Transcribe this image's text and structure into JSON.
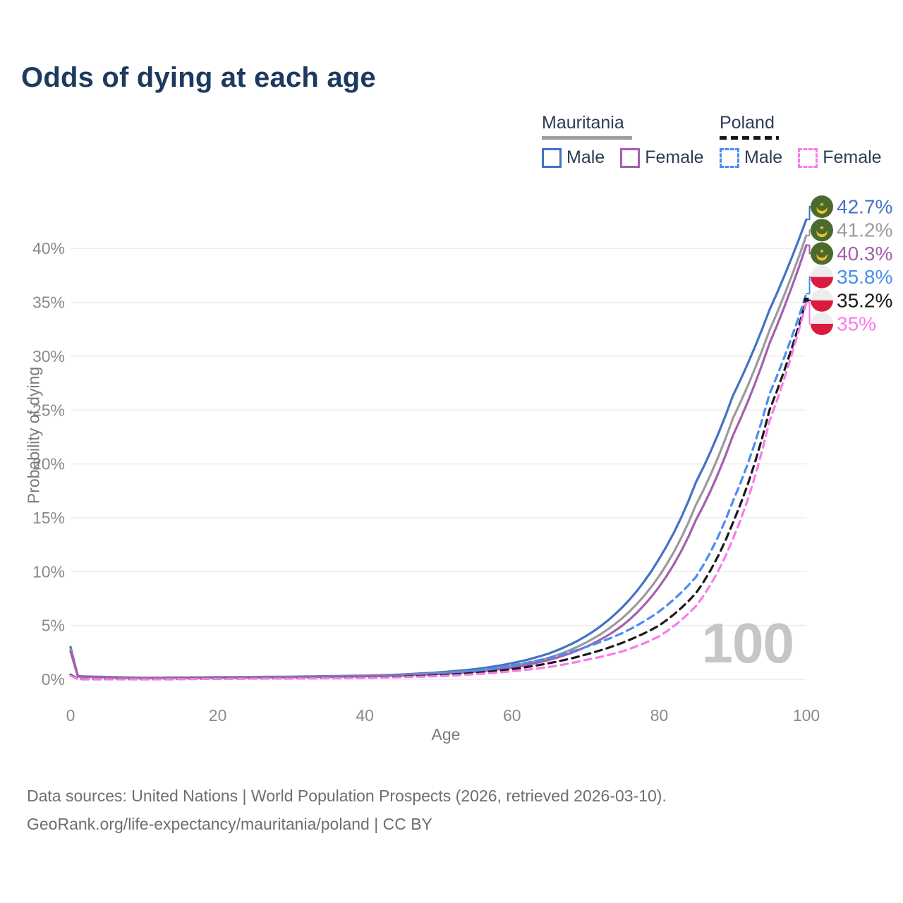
{
  "title": "Odds of dying at each age",
  "legend": {
    "groups": [
      {
        "label": "Mauritania",
        "line_style": "solid",
        "header_swatch_color": "#9e9e9e",
        "items": [
          {
            "label": "Male",
            "color": "#4372c4",
            "dashed": false
          },
          {
            "label": "Female",
            "color": "#a55fae",
            "dashed": false
          }
        ]
      },
      {
        "label": "Poland",
        "line_style": "dashed",
        "header_swatch_color": "#161616",
        "items": [
          {
            "label": "Male",
            "color": "#4a8df0",
            "dashed": true
          },
          {
            "label": "Female",
            "color": "#f87ce8",
            "dashed": true
          }
        ]
      }
    ]
  },
  "chart_data": {
    "type": "line",
    "title": "Odds of dying at each age",
    "xlabel": "Age",
    "ylabel": "Probability of dying",
    "xlim": [
      0,
      100
    ],
    "ylim_percent": [
      0,
      44
    ],
    "x_ticks": [
      0,
      20,
      40,
      60,
      80,
      100
    ],
    "y_ticks": [
      {
        "value": 0,
        "label": "0%"
      },
      {
        "value": 5,
        "label": "5%"
      },
      {
        "value": 10,
        "label": "10%"
      },
      {
        "value": 15,
        "label": "15%"
      },
      {
        "value": 20,
        "label": "20%"
      },
      {
        "value": 25,
        "label": "25%"
      },
      {
        "value": 30,
        "label": "30%"
      },
      {
        "value": 35,
        "label": "35%"
      },
      {
        "value": 40,
        "label": "40%"
      }
    ],
    "grid": "horizontal",
    "legend_position": "top-right",
    "x": [
      0,
      1,
      10,
      20,
      30,
      40,
      45,
      50,
      55,
      60,
      65,
      70,
      75,
      80,
      85,
      90,
      95,
      100
    ],
    "series": [
      {
        "id": "mrt-male",
        "name": "Mauritania — Male",
        "country": "mauritania",
        "sex": "male",
        "color": "#4372c4",
        "dashed": false,
        "end_label": "42.7%",
        "values_percent": [
          3.0,
          0.3,
          0.15,
          0.2,
          0.25,
          0.35,
          0.45,
          0.65,
          0.95,
          1.5,
          2.4,
          4.0,
          6.7,
          11.2,
          18.3,
          26.3,
          34.3,
          42.7
        ]
      },
      {
        "id": "mrt-both",
        "name": "Mauritania — Both sexes",
        "country": "mauritania",
        "sex": "both",
        "color": "#9b9b9b",
        "dashed": false,
        "end_label": "41.2%",
        "values_percent": [
          2.8,
          0.28,
          0.13,
          0.18,
          0.22,
          0.3,
          0.4,
          0.55,
          0.8,
          1.25,
          2.0,
          3.4,
          5.7,
          9.6,
          16.2,
          24.2,
          32.4,
          41.2
        ]
      },
      {
        "id": "mrt-female",
        "name": "Mauritania — Female",
        "country": "mauritania",
        "sex": "female",
        "color": "#a55fae",
        "dashed": false,
        "end_label": "40.3%",
        "values_percent": [
          2.6,
          0.26,
          0.12,
          0.16,
          0.2,
          0.28,
          0.36,
          0.5,
          0.72,
          1.1,
          1.8,
          3.0,
          5.0,
          8.6,
          14.8,
          22.6,
          31.2,
          40.3
        ]
      },
      {
        "id": "pol-male",
        "name": "Poland — Male",
        "country": "poland",
        "sex": "male",
        "color": "#4a8df0",
        "dashed": true,
        "end_label": "35.8%",
        "values_percent": [
          0.45,
          0.03,
          0.02,
          0.08,
          0.12,
          0.2,
          0.3,
          0.5,
          0.8,
          1.3,
          2.0,
          3.0,
          4.3,
          6.3,
          9.5,
          16.5,
          26.5,
          35.8
        ]
      },
      {
        "id": "pol-both",
        "name": "Poland — Both sexes",
        "country": "poland",
        "sex": "both",
        "color": "#1a1a1a",
        "dashed": true,
        "end_label": "35.2%",
        "values_percent": [
          0.4,
          0.025,
          0.015,
          0.06,
          0.09,
          0.16,
          0.24,
          0.38,
          0.6,
          0.95,
          1.5,
          2.3,
          3.4,
          5.0,
          8.0,
          14.5,
          25.0,
          35.2
        ]
      },
      {
        "id": "pol-female",
        "name": "Poland — Female",
        "country": "poland",
        "sex": "female",
        "color": "#f87ce8",
        "dashed": true,
        "end_label": "35%",
        "values_percent": [
          0.35,
          0.02,
          0.012,
          0.05,
          0.08,
          0.13,
          0.2,
          0.3,
          0.48,
          0.75,
          1.15,
          1.8,
          2.6,
          4.0,
          6.8,
          13.0,
          24.0,
          35.0
        ]
      }
    ],
    "flags": {
      "mauritania": {
        "circle": "#4b6b2d",
        "emblem": "#f2c22e"
      },
      "poland": {
        "top": "#ededed",
        "bottom": "#d81b3e"
      }
    }
  },
  "watermark": "100",
  "footer": {
    "line1": "Data sources: United Nations | World Population Prospects (2026, retrieved 2026-03-10).",
    "line2": "GeoRank.org/life-expectancy/mauritania/poland | CC BY"
  }
}
